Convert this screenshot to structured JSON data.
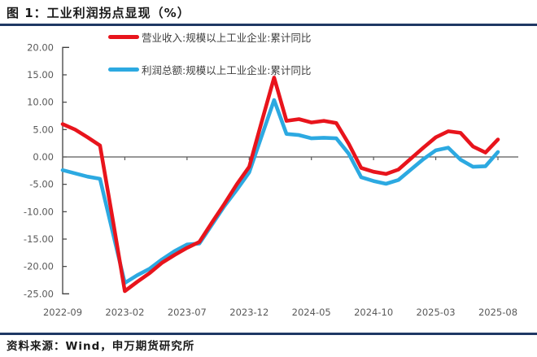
{
  "page": {
    "title": "图 1：工业利润拐点显现（%）"
  },
  "footer": {
    "source": "资料来源：Wind，申万期货研究所"
  },
  "colors": {
    "accent_navy": "#1f3864",
    "revenue_red": "#e8141c",
    "profit_blue": "#2ca9e1",
    "axis_text": "#595959",
    "axis_line": "#404040",
    "zero_line": "#595959"
  },
  "chart_data": {
    "type": "line",
    "title": "图 1：工业利润拐点显现（%）",
    "xlabel": "",
    "ylabel": "",
    "ylim": [
      -25,
      20
    ],
    "grid": false,
    "legend_position": "top-center",
    "x": [
      "2022-09",
      "2022-10",
      "2022-11",
      "2022-12",
      "2023-01",
      "2023-02",
      "2023-03",
      "2023-04",
      "2023-05",
      "2023-06",
      "2023-07",
      "2023-08",
      "2023-09",
      "2023-10",
      "2023-11",
      "2023-12",
      "2024-01",
      "2024-02",
      "2024-03",
      "2024-04",
      "2024-05",
      "2024-06",
      "2024-07",
      "2024-08",
      "2024-09",
      "2024-10",
      "2024-11",
      "2024-12",
      "2025-01",
      "2025-02",
      "2025-03",
      "2025-04",
      "2025-05",
      "2025-06",
      "2025-07",
      "2025-08"
    ],
    "x_tick_labels": [
      "2022-09",
      "2023-02",
      "2023-07",
      "2023-12",
      "2024-05",
      "2024-10",
      "2025-03",
      "2025-08"
    ],
    "y_tick_labels": [
      "20.00",
      "15.00",
      "10.00",
      "5.00",
      "0.00",
      "-5.00",
      "-10.00",
      "-15.00",
      "-20.00",
      "-25.00"
    ],
    "series": [
      {
        "name": "营业收入:规模以上工业企业:累计同比",
        "color": "#e8141c",
        "values": [
          6.0,
          5.0,
          3.6,
          2.1,
          -11.0,
          -24.5,
          -22.8,
          -21.2,
          -19.3,
          -17.9,
          -16.6,
          -15.5,
          -12.0,
          -8.6,
          -5.0,
          -1.8,
          6.4,
          14.5,
          6.6,
          6.9,
          6.3,
          6.6,
          6.2,
          2.4,
          -2.0,
          -2.7,
          -3.1,
          -2.3,
          -0.3,
          1.7,
          3.6,
          4.7,
          4.4,
          1.9,
          0.8,
          3.2
        ]
      },
      {
        "name": "利润总额:规模以上工业企业:累计同比",
        "color": "#2ca9e1",
        "values": [
          -2.4,
          -3.0,
          -3.6,
          -4.0,
          -13.5,
          -23.0,
          -21.6,
          -20.4,
          -18.7,
          -17.2,
          -16.0,
          -15.8,
          -12.4,
          -9.0,
          -6.0,
          -2.8,
          3.8,
          10.4,
          4.2,
          4.0,
          3.4,
          3.5,
          3.4,
          0.6,
          -3.7,
          -4.4,
          -4.9,
          -4.2,
          -2.3,
          -0.4,
          1.2,
          1.7,
          -0.5,
          -1.8,
          -1.7,
          0.9
        ]
      }
    ]
  }
}
